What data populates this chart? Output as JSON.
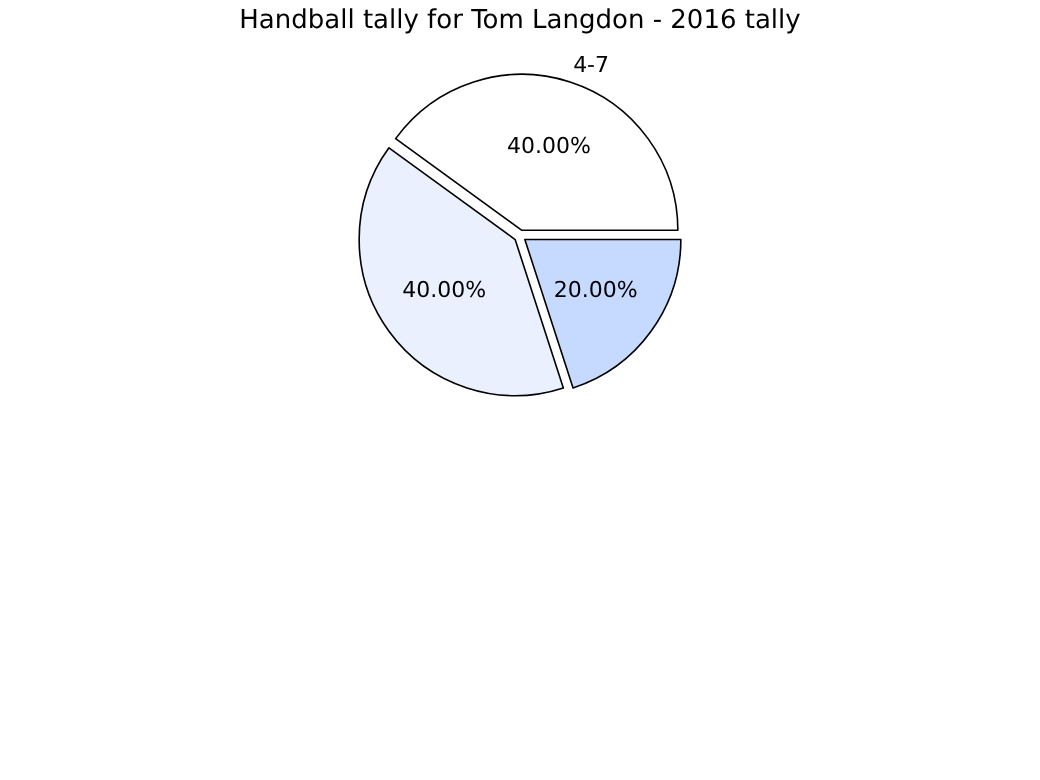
{
  "chart_data": {
    "type": "pie",
    "title": "Handball tally for Tom Langdon - 2016 tally",
    "categories": [
      null,
      null,
      "4-7"
    ],
    "values": [
      20,
      40,
      40
    ],
    "colors": [
      "#c6d9ff",
      "#eaf0fe",
      "#ffffff"
    ],
    "value_labels": [
      "20.00%",
      "40.00%",
      "40.00%"
    ]
  }
}
